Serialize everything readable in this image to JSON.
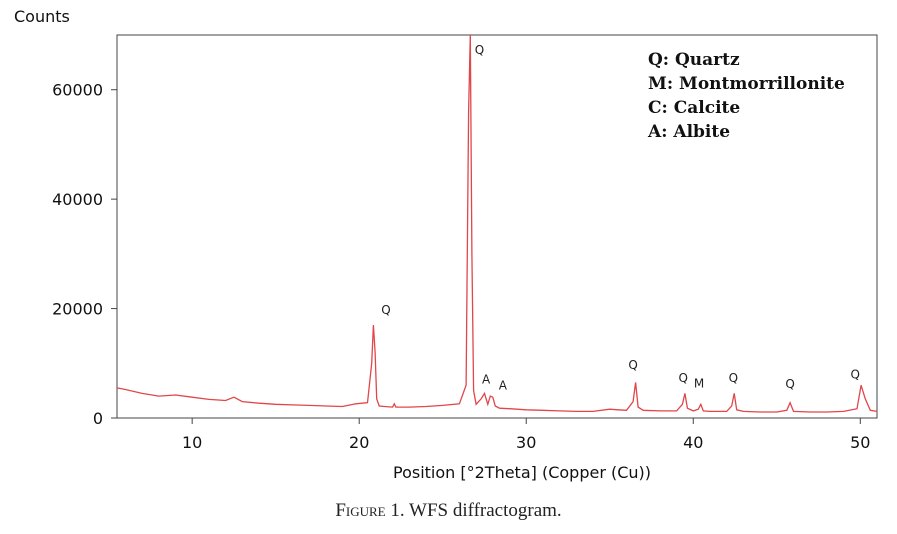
{
  "chart_data": {
    "type": "line",
    "ylabel": "Counts",
    "xlabel": "Position [°2Theta] (Copper (Cu))",
    "xlim": [
      5.5,
      51
    ],
    "ylim": [
      0,
      70000
    ],
    "x_ticks": [
      10,
      20,
      30,
      40,
      50
    ],
    "y_ticks": [
      0,
      20000,
      40000,
      60000
    ],
    "grid": false,
    "line_color": "#e0464a",
    "series": [
      {
        "x": [
          5.5,
          6,
          7,
          8,
          9,
          10,
          11,
          12,
          12.5,
          13,
          14,
          15,
          16,
          17,
          18,
          19,
          19.8,
          20.5,
          20.75,
          20.85,
          20.95,
          21.05,
          21.2,
          21.5,
          22,
          22.1,
          22.2,
          23,
          24,
          25,
          26,
          26.4,
          26.55,
          26.65,
          26.75,
          26.85,
          27,
          27.3,
          27.5,
          27.7,
          27.85,
          28.0,
          28.15,
          28.4,
          29,
          30,
          31,
          32,
          33,
          34,
          35,
          35.5,
          36,
          36.4,
          36.55,
          36.7,
          37,
          38,
          39,
          39.35,
          39.5,
          39.65,
          40,
          40.3,
          40.45,
          40.6,
          41,
          42,
          42.3,
          42.45,
          42.6,
          43,
          44,
          45,
          45.6,
          45.8,
          46,
          47,
          48,
          49,
          49.8,
          50.05,
          50.3,
          50.6,
          51
        ],
        "y": [
          5500,
          5200,
          4500,
          4000,
          4200,
          3800,
          3400,
          3200,
          3800,
          3000,
          2700,
          2500,
          2400,
          2300,
          2200,
          2100,
          2600,
          2800,
          10000,
          17000,
          12000,
          3500,
          2200,
          2100,
          2000,
          2600,
          2000,
          2000,
          2100,
          2300,
          2600,
          6000,
          56000,
          70000,
          30000,
          5000,
          2500,
          3500,
          4500,
          2500,
          4000,
          3800,
          2200,
          1800,
          1700,
          1500,
          1400,
          1300,
          1200,
          1200,
          1600,
          1500,
          1400,
          3000,
          6500,
          2000,
          1400,
          1300,
          1300,
          2500,
          4500,
          1800,
          1300,
          1600,
          2500,
          1300,
          1200,
          1200,
          2200,
          4500,
          1500,
          1200,
          1100,
          1100,
          1400,
          2800,
          1200,
          1100,
          1100,
          1200,
          1700,
          6000,
          3500,
          1400,
          1200
        ]
      }
    ],
    "annotations": [
      {
        "text": "Q",
        "x": 27.2,
        "y": 66500
      },
      {
        "text": "Q",
        "x": 21.6,
        "y": 19000
      },
      {
        "text": "A",
        "x": 27.6,
        "y": 6300
      },
      {
        "text": "A",
        "x": 28.6,
        "y": 5200
      },
      {
        "text": "Q",
        "x": 36.4,
        "y": 9000
      },
      {
        "text": "Q",
        "x": 39.4,
        "y": 6600
      },
      {
        "text": "M",
        "x": 40.35,
        "y": 5600
      },
      {
        "text": "Q",
        "x": 42.4,
        "y": 6600
      },
      {
        "text": "Q",
        "x": 45.8,
        "y": 5500
      },
      {
        "text": "Q",
        "x": 49.7,
        "y": 7200
      }
    ],
    "legend": {
      "placement": "top-right",
      "entries": [
        "Q: Quartz",
        "M: Montmorrillonite",
        "C: Calcite",
        "A: Albite"
      ]
    }
  },
  "caption": {
    "label": "Figure",
    "text": " 1. WFS diffractogram."
  }
}
